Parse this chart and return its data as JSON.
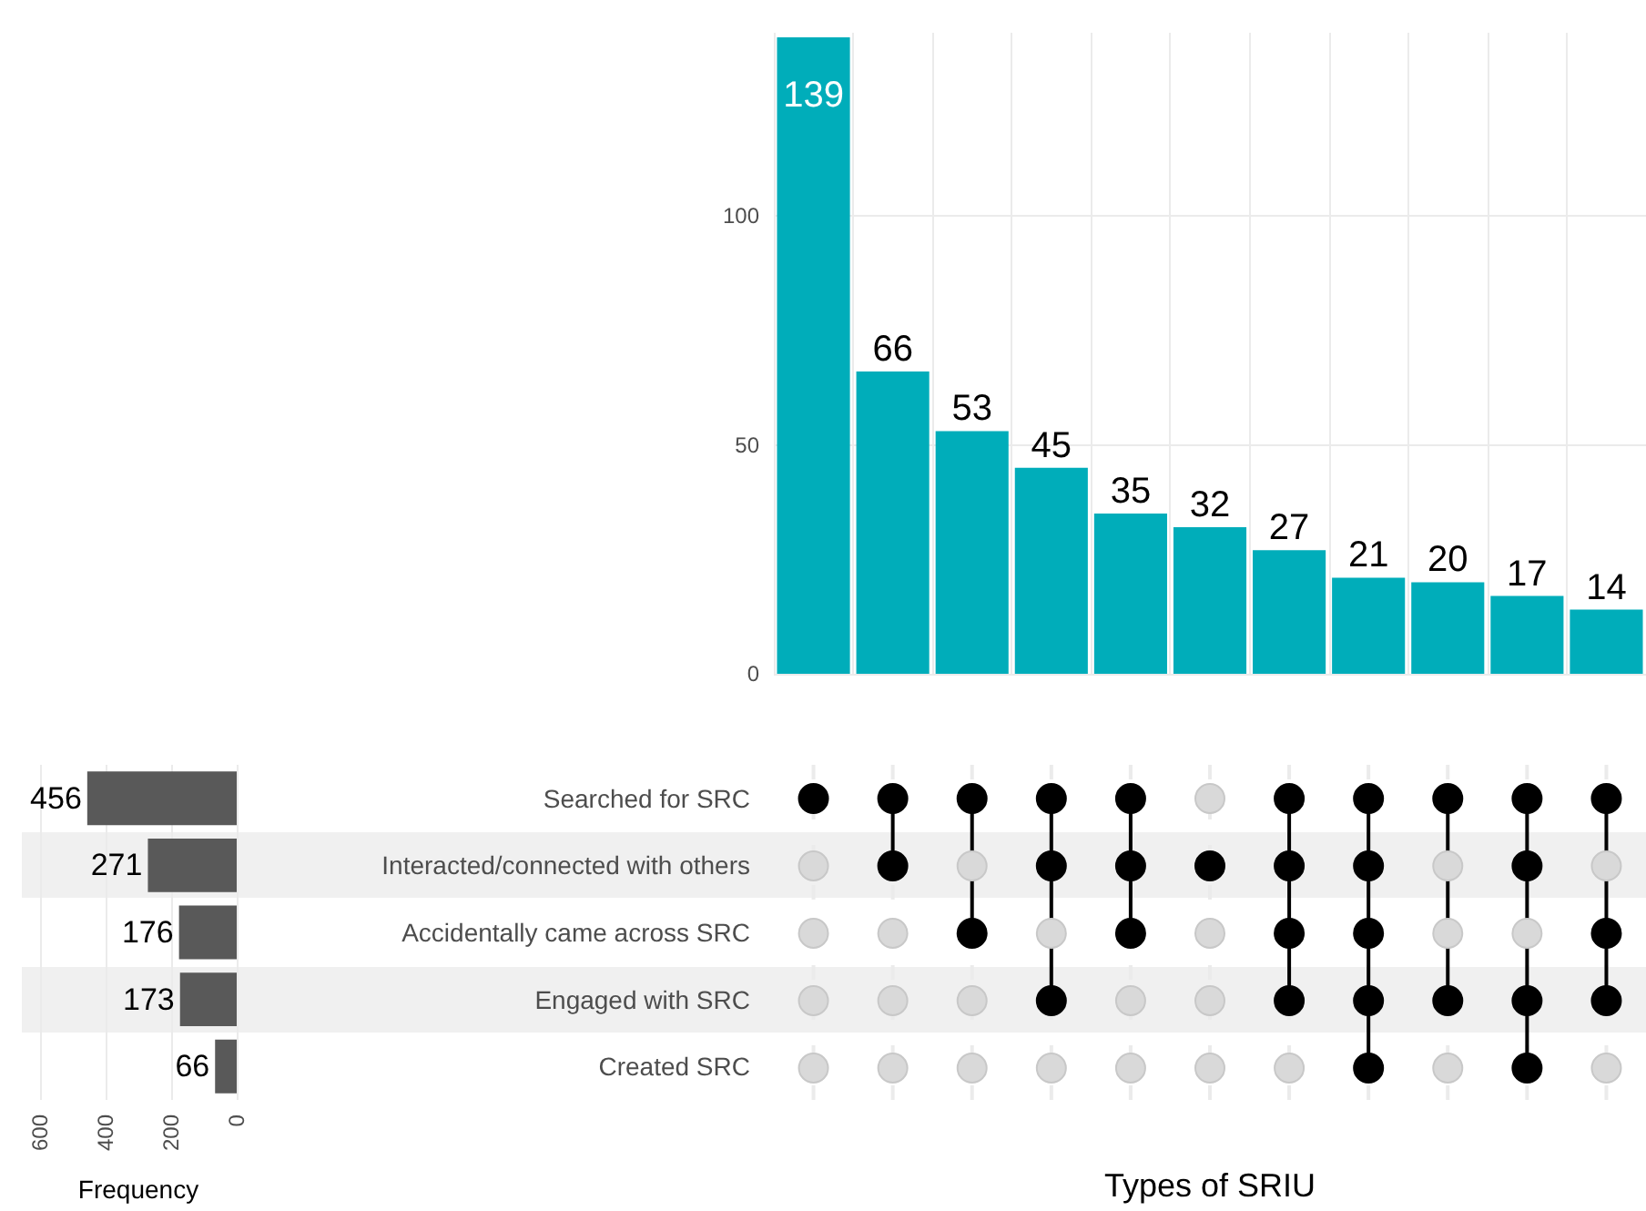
{
  "chart_data": [
    {
      "type": "bar",
      "categories": [
        null,
        null,
        null,
        null,
        null,
        null,
        null,
        null,
        null,
        null,
        null
      ],
      "values": [
        139,
        66,
        53,
        45,
        35,
        32,
        27,
        21,
        20,
        17,
        14
      ],
      "color": "#00adba",
      "ylim": [
        0,
        140
      ],
      "yticks": [
        0,
        50,
        100
      ],
      "xlabel": "Types of SRIU",
      "grid": true,
      "data_labels": true
    },
    {
      "type": "bar",
      "orientation": "horizontal",
      "categories": [
        "Searched for SRC",
        "Interacted/connected with others",
        "Accidentally came across SRC",
        "Engaged with SRC",
        "Created SRC"
      ],
      "values": [
        456,
        271,
        176,
        173,
        66
      ],
      "color": "#595959",
      "xlim": [
        600,
        0
      ],
      "xticks": [
        600,
        400,
        200,
        0
      ],
      "xlabel": "Frequency",
      "grid": "x",
      "data_labels": true
    }
  ]
}
